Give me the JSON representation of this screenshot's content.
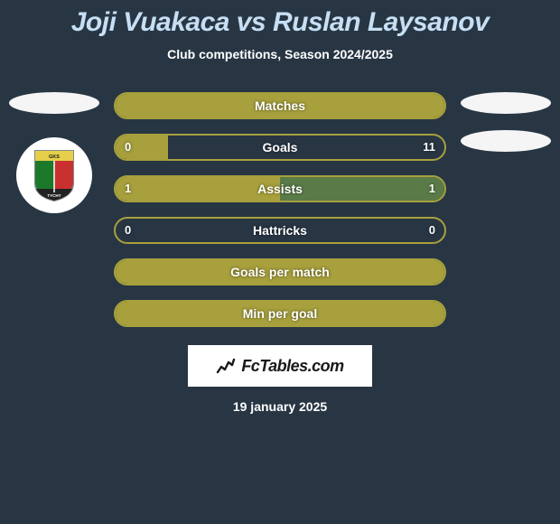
{
  "title": "Joji Vuakaca vs Ruslan Laysanov",
  "subtitle": "Club competitions, Season 2024/2025",
  "date": "19 january 2025",
  "brand": "FcTables.com",
  "badge": {
    "ring_color": "#848a8d",
    "shield_top": "#e6cf4a",
    "shield_left": "#1a7a2a",
    "shield_right": "#c93030",
    "shield_mid_line": "#ffffff",
    "shield_bottom": "#222222",
    "label_top": "GKS",
    "label_bottom": "TYCHY"
  },
  "colors": {
    "background": "#283644",
    "title": "#c7dff4",
    "text": "#ffffff",
    "bar_border": "#a7a03c",
    "bar_fill": "#a7a03c",
    "bar_fill_right_alt": "#5a7a47",
    "bar_right_segment": "#5a7a47",
    "bar_empty": "#283644"
  },
  "stats": [
    {
      "label": "Matches",
      "left_value": "",
      "right_value": "",
      "left_fill_pct": 100,
      "right_fill_pct": 0,
      "left_color": "#a7a03c",
      "right_color": "#a7a03c",
      "show_vals": false
    },
    {
      "label": "Goals",
      "left_value": "0",
      "right_value": "11",
      "left_fill_pct": 16,
      "right_fill_pct": 0,
      "left_color": "#a7a03c",
      "right_color": "#a7a03c",
      "show_vals": true
    },
    {
      "label": "Assists",
      "left_value": "1",
      "right_value": "1",
      "left_fill_pct": 50,
      "right_fill_pct": 50,
      "left_color": "#a7a03c",
      "right_color": "#5a7a47",
      "show_vals": true
    },
    {
      "label": "Hattricks",
      "left_value": "0",
      "right_value": "0",
      "left_fill_pct": 0,
      "right_fill_pct": 0,
      "left_color": "#a7a03c",
      "right_color": "#a7a03c",
      "show_vals": true
    },
    {
      "label": "Goals per match",
      "left_value": "",
      "right_value": "",
      "left_fill_pct": 100,
      "right_fill_pct": 0,
      "left_color": "#a7a03c",
      "right_color": "#a7a03c",
      "show_vals": false
    },
    {
      "label": "Min per goal",
      "left_value": "",
      "right_value": "",
      "left_fill_pct": 100,
      "right_fill_pct": 0,
      "left_color": "#a7a03c",
      "right_color": "#a7a03c",
      "show_vals": false
    }
  ]
}
